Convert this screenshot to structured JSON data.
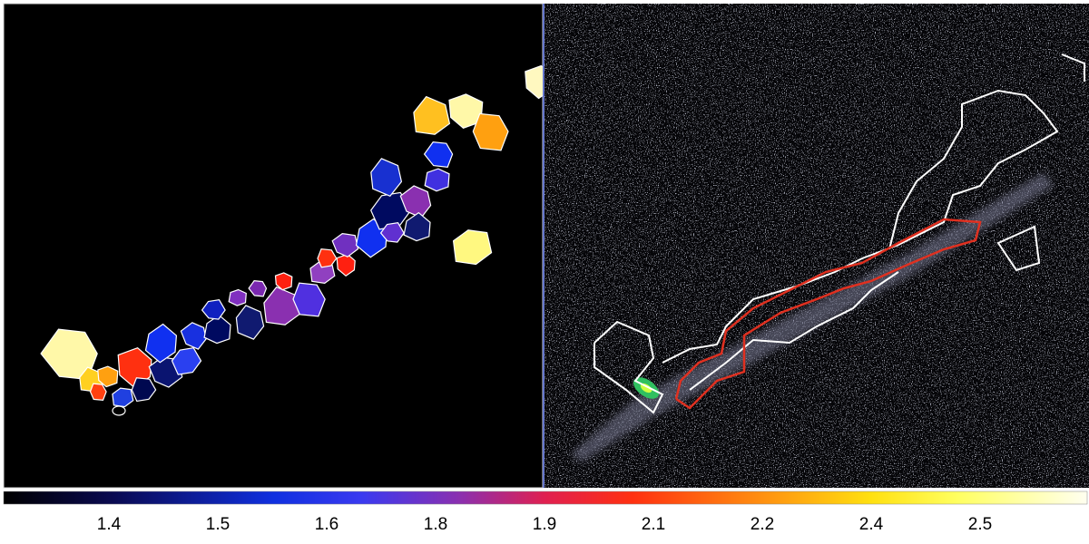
{
  "colorbar": {
    "ticks": [
      1.4,
      1.5,
      1.6,
      1.8,
      1.9,
      2.1,
      2.2,
      2.4,
      2.5
    ]
  }
}
